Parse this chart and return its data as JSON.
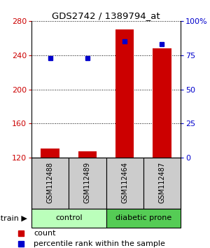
{
  "title": "GDS2742 / 1389794_at",
  "samples": [
    "GSM112488",
    "GSM112489",
    "GSM112464",
    "GSM112487"
  ],
  "count_values": [
    131,
    127,
    270,
    248
  ],
  "percentile_values": [
    73,
    73,
    85,
    83
  ],
  "bar_color": "#cc0000",
  "dot_color": "#0000cc",
  "ylim_left": [
    120,
    280
  ],
  "ylim_right": [
    0,
    100
  ],
  "yticks_left": [
    120,
    160,
    200,
    240,
    280
  ],
  "yticks_right": [
    0,
    25,
    50,
    75,
    100
  ],
  "ytick_labels_right": [
    "0",
    "25",
    "50",
    "75",
    "100%"
  ],
  "left_tick_color": "#cc0000",
  "right_tick_color": "#0000cc",
  "bg_plot": "#ffffff",
  "bg_sample": "#cccccc",
  "bg_control": "#bbffbb",
  "bg_diabetic": "#66dd66",
  "bar_width": 0.5,
  "group_info": [
    {
      "label": "control",
      "start": 0,
      "end": 2,
      "color": "#bbffbb"
    },
    {
      "label": "diabetic prone",
      "start": 2,
      "end": 4,
      "color": "#55cc55"
    }
  ]
}
